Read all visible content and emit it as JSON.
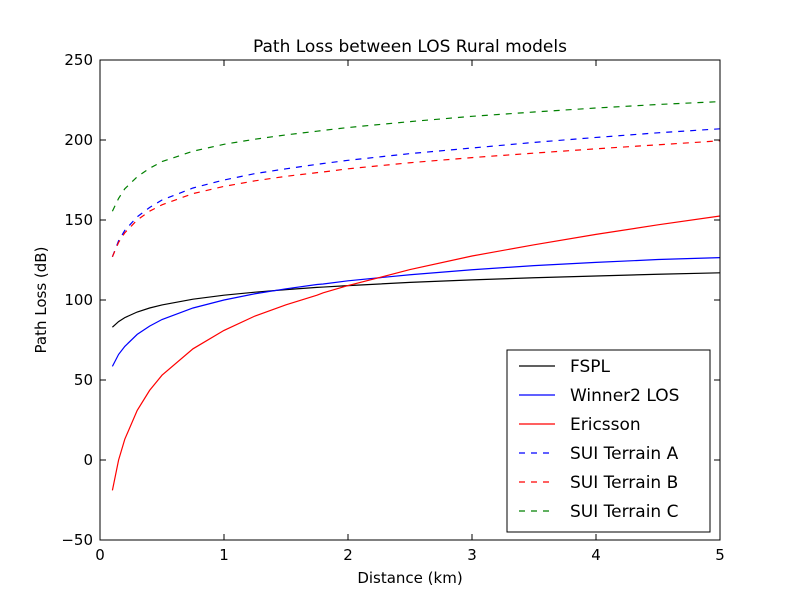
{
  "chart_data": {
    "type": "line",
    "title": "Path Loss between LOS Rural models",
    "xlabel": "Distance (km)",
    "ylabel": "Path Loss (dB)",
    "xlim": [
      0,
      5
    ],
    "ylim": [
      -50,
      250
    ],
    "xticks": [
      0,
      1,
      2,
      3,
      4,
      5
    ],
    "yticks": [
      -50,
      0,
      50,
      100,
      150,
      200,
      250
    ],
    "xtick_labels": [
      "0",
      "1",
      "2",
      "3",
      "4",
      "5"
    ],
    "ytick_labels": [
      "−50",
      "0",
      "50",
      "100",
      "150",
      "200",
      "250"
    ],
    "grid": false,
    "legend_position": "lower-right",
    "x": [
      0.1,
      0.15,
      0.2,
      0.3,
      0.4,
      0.5,
      0.75,
      1.0,
      1.25,
      1.5,
      1.75,
      1.8,
      2.0,
      2.5,
      3.0,
      3.5,
      4.0,
      4.5,
      5.0
    ],
    "series": [
      {
        "name": "FSPL",
        "color": "#000000",
        "dash": "solid",
        "values": [
          83.0,
          86.5,
          89.0,
          92.5,
          95.0,
          96.9,
          100.5,
          103.0,
          104.9,
          106.5,
          107.9,
          108.1,
          109.0,
          111.0,
          112.6,
          113.9,
          115.0,
          116.1,
          117.0
        ]
      },
      {
        "name": "Winner2 LOS",
        "color": "#0000ff",
        "dash": "solid",
        "values": [
          58.5,
          66.0,
          71.0,
          78.5,
          83.7,
          87.8,
          95.0,
          100.0,
          103.9,
          107.0,
          109.7,
          110.0,
          112.0,
          115.8,
          118.9,
          121.5,
          123.5,
          125.3,
          126.5
        ]
      },
      {
        "name": "Ericsson",
        "color": "#ff0000",
        "dash": "solid",
        "values": [
          -19.0,
          0.0,
          13.0,
          31.0,
          43.5,
          53.0,
          69.5,
          81.0,
          90.0,
          97.0,
          103.0,
          104.5,
          109.0,
          119.0,
          127.5,
          134.5,
          141.0,
          147.0,
          152.5
        ]
      },
      {
        "name": "SUI Terrain A",
        "color": "#0000ff",
        "dash": "dashed",
        "values": [
          127.0,
          137.0,
          143.5,
          152.0,
          157.8,
          162.5,
          170.0,
          175.0,
          179.0,
          182.0,
          184.8,
          185.3,
          187.3,
          191.5,
          195.0,
          198.5,
          201.6,
          204.5,
          207.0
        ]
      },
      {
        "name": "SUI Terrain B",
        "color": "#ff0000",
        "dash": "dashed",
        "values": [
          127.0,
          136.0,
          142.0,
          150.0,
          155.5,
          159.5,
          166.5,
          171.0,
          174.5,
          177.3,
          179.6,
          180.0,
          182.0,
          185.8,
          189.0,
          191.8,
          194.5,
          197.0,
          199.5
        ]
      },
      {
        "name": "SUI Terrain C",
        "color": "#008000",
        "dash": "dashed",
        "values": [
          155.5,
          163.5,
          169.5,
          177.0,
          182.3,
          186.5,
          193.0,
          197.3,
          200.5,
          203.2,
          205.5,
          206.0,
          207.8,
          211.5,
          214.8,
          217.5,
          220.0,
          222.2,
          224.0
        ]
      }
    ]
  }
}
